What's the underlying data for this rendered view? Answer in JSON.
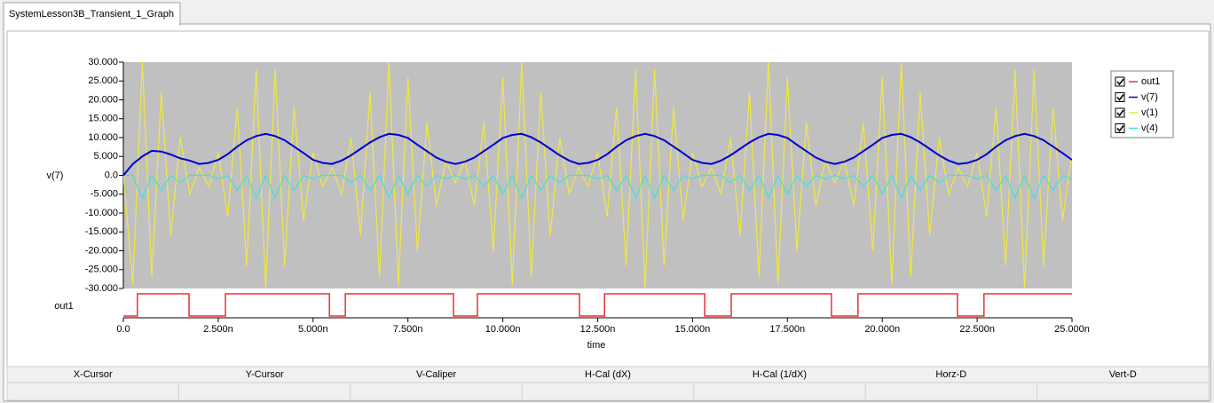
{
  "tab": {
    "title": "SystemLesson3B_Transient_1_Graph"
  },
  "chart_data": {
    "type": "line",
    "xlabel": "time",
    "ylabel": "v(7)",
    "xlim": [
      0,
      25
    ],
    "ylim": [
      -30,
      30
    ],
    "grid": false,
    "legend": "right",
    "xticks": [
      {
        "value": 0,
        "label": "0.0"
      },
      {
        "value": 2.5,
        "label": "2.500n"
      },
      {
        "value": 5,
        "label": "5.000n"
      },
      {
        "value": 7.5,
        "label": "7.500n"
      },
      {
        "value": 10,
        "label": "10.000n"
      },
      {
        "value": 12.5,
        "label": "12.500n"
      },
      {
        "value": 15,
        "label": "15.000n"
      },
      {
        "value": 17.5,
        "label": "17.500n"
      },
      {
        "value": 20,
        "label": "20.000n"
      },
      {
        "value": 22.5,
        "label": "22.500n"
      },
      {
        "value": 25,
        "label": "25.000n"
      }
    ],
    "yticks": [
      {
        "value": 30,
        "label": "30.000"
      },
      {
        "value": 25,
        "label": "25.000"
      },
      {
        "value": 20,
        "label": "20.000"
      },
      {
        "value": 15,
        "label": "15.000"
      },
      {
        "value": 10,
        "label": "10.000"
      },
      {
        "value": 5,
        "label": "5.000"
      },
      {
        "value": 0,
        "label": "0.0"
      },
      {
        "value": -5,
        "label": "-5.000"
      },
      {
        "value": -10,
        "label": "-10.000"
      },
      {
        "value": -15,
        "label": "-15.000"
      },
      {
        "value": -20,
        "label": "-20.000"
      },
      {
        "value": -25,
        "label": "-25.000"
      },
      {
        "value": -30,
        "label": "-30.000"
      }
    ],
    "x": [
      0,
      0.25,
      0.5,
      0.75,
      1,
      1.25,
      1.5,
      1.75,
      2,
      2.25,
      2.5,
      2.75,
      3,
      3.25,
      3.5,
      3.75,
      4,
      4.25,
      4.5,
      4.75,
      5,
      5.25,
      5.5,
      5.75,
      6,
      6.25,
      6.5,
      6.75,
      7,
      7.25,
      7.5,
      7.75,
      8,
      8.25,
      8.5,
      8.75,
      9,
      9.25,
      9.5,
      9.75,
      10,
      10.25,
      10.5,
      10.75,
      11,
      11.25,
      11.5,
      11.75,
      12,
      12.25,
      12.5,
      12.75,
      13,
      13.25,
      13.5,
      13.75,
      14,
      14.25,
      14.5,
      14.75,
      15,
      15.25,
      15.5,
      15.75,
      16,
      16.25,
      16.5,
      16.75,
      17,
      17.25,
      17.5,
      17.75,
      18,
      18.25,
      18.5,
      18.75,
      19,
      19.25,
      19.5,
      19.75,
      20,
      20.25,
      20.5,
      20.75,
      21,
      21.25,
      21.5,
      21.75,
      22,
      22.25,
      22.5,
      22.75,
      23,
      23.25,
      23.5,
      23.75,
      24,
      24.25,
      24.5,
      24.75,
      25
    ],
    "series": [
      {
        "name": "out1",
        "color": "#e83030",
        "digital": true,
        "x": [
          0,
          0.37,
          1.73,
          2.69,
          5.43,
          5.85,
          8.7,
          9.33,
          12.02,
          12.68,
          15.32,
          16.02,
          18.66,
          19.36,
          21.98,
          22.68,
          25
        ],
        "values": [
          0,
          1,
          0,
          1,
          0,
          1,
          0,
          1,
          0,
          1,
          0,
          1,
          0,
          1,
          0,
          1,
          1
        ]
      },
      {
        "name": "v(7)",
        "color": "#0000d0",
        "values": [
          0,
          3,
          5,
          6.5,
          6.3,
          5.5,
          4.5,
          3.9,
          3.0,
          3.3,
          4.1,
          5.6,
          7.6,
          9.3,
          10.4,
          11.0,
          10.4,
          9.3,
          7.6,
          5.9,
          4.1,
          3.3,
          3.0,
          3.9,
          5.3,
          7.0,
          8.7,
          10.1,
          11.0,
          10.7,
          9.9,
          8.1,
          6.4,
          4.7,
          3.6,
          3.0,
          3.6,
          4.7,
          6.4,
          8.1,
          9.9,
          10.7,
          11.0,
          10.1,
          8.7,
          7.0,
          5.3,
          3.9,
          3.0,
          3.3,
          4.1,
          5.6,
          7.6,
          9.3,
          10.4,
          11.0,
          10.4,
          9.3,
          7.6,
          5.9,
          4.1,
          3.3,
          3.0,
          3.9,
          5.3,
          7.0,
          8.7,
          10.1,
          11.0,
          10.7,
          9.9,
          8.1,
          6.4,
          4.7,
          3.6,
          3.0,
          3.6,
          4.7,
          6.4,
          8.1,
          9.9,
          10.7,
          11.0,
          10.1,
          8.7,
          7.0,
          5.3,
          3.9,
          3.0,
          3.3,
          4.1,
          5.6,
          7.6,
          9.3,
          10.4,
          11.0,
          10.4,
          9.3,
          7.6,
          5.9,
          4.1
        ]
      },
      {
        "name": "v(1)",
        "color": "#f0e840",
        "values": [
          0,
          -29,
          30,
          -27,
          22,
          -16,
          10,
          -5,
          2,
          -3,
          6,
          -11,
          18,
          -24,
          28,
          -30,
          28,
          -24,
          18,
          -12,
          6,
          -3,
          2,
          -5,
          10,
          -16,
          22,
          -27,
          30,
          -29,
          26,
          -20,
          14,
          -8,
          4,
          -2,
          4,
          -8,
          14,
          -20,
          26,
          -29,
          30,
          -27,
          22,
          -16,
          10,
          -5,
          2,
          -3,
          6,
          -11,
          18,
          -24,
          28,
          -30,
          28,
          -24,
          18,
          -12,
          6,
          -3,
          2,
          -5,
          10,
          -16,
          22,
          -27,
          30,
          -29,
          26,
          -20,
          14,
          -8,
          4,
          -2,
          4,
          -8,
          14,
          -20,
          26,
          -29,
          30,
          -27,
          22,
          -16,
          10,
          -5,
          2,
          -3,
          6,
          -11,
          18,
          -24,
          28,
          -30,
          28,
          -24,
          18,
          -12,
          6
        ]
      },
      {
        "name": "v(4)",
        "color": "#40e0d8",
        "values": [
          0,
          0,
          -6,
          0,
          -4,
          0,
          -2,
          0,
          0,
          0,
          -1,
          0,
          -4,
          0,
          -6,
          0,
          -6,
          0,
          -4,
          0,
          -1,
          0,
          0,
          0,
          -2,
          0,
          -4,
          0,
          -6,
          0,
          -5,
          0,
          -3,
          0,
          -1,
          0,
          -1,
          0,
          -3,
          0,
          -5,
          0,
          -6,
          0,
          -4,
          0,
          -2,
          0,
          0,
          0,
          -1,
          0,
          -4,
          0,
          -6,
          0,
          -6,
          0,
          -4,
          0,
          -1,
          0,
          0,
          0,
          -2,
          0,
          -4,
          0,
          -6,
          0,
          -5,
          0,
          -3,
          0,
          -1,
          0,
          -1,
          0,
          -3,
          0,
          -5,
          0,
          -6,
          0,
          -4,
          0,
          -2,
          0,
          0,
          0,
          -1,
          0,
          -4,
          0,
          -6,
          0,
          -6,
          0,
          -4,
          0,
          -1
        ]
      }
    ]
  },
  "cursor_panel": {
    "columns": [
      "X-Cursor",
      "Y-Cursor",
      "V-Caliper",
      "H-Cal (dX)",
      "H-Cal (1/dX)",
      "Horz-D",
      "Vert-D"
    ]
  }
}
